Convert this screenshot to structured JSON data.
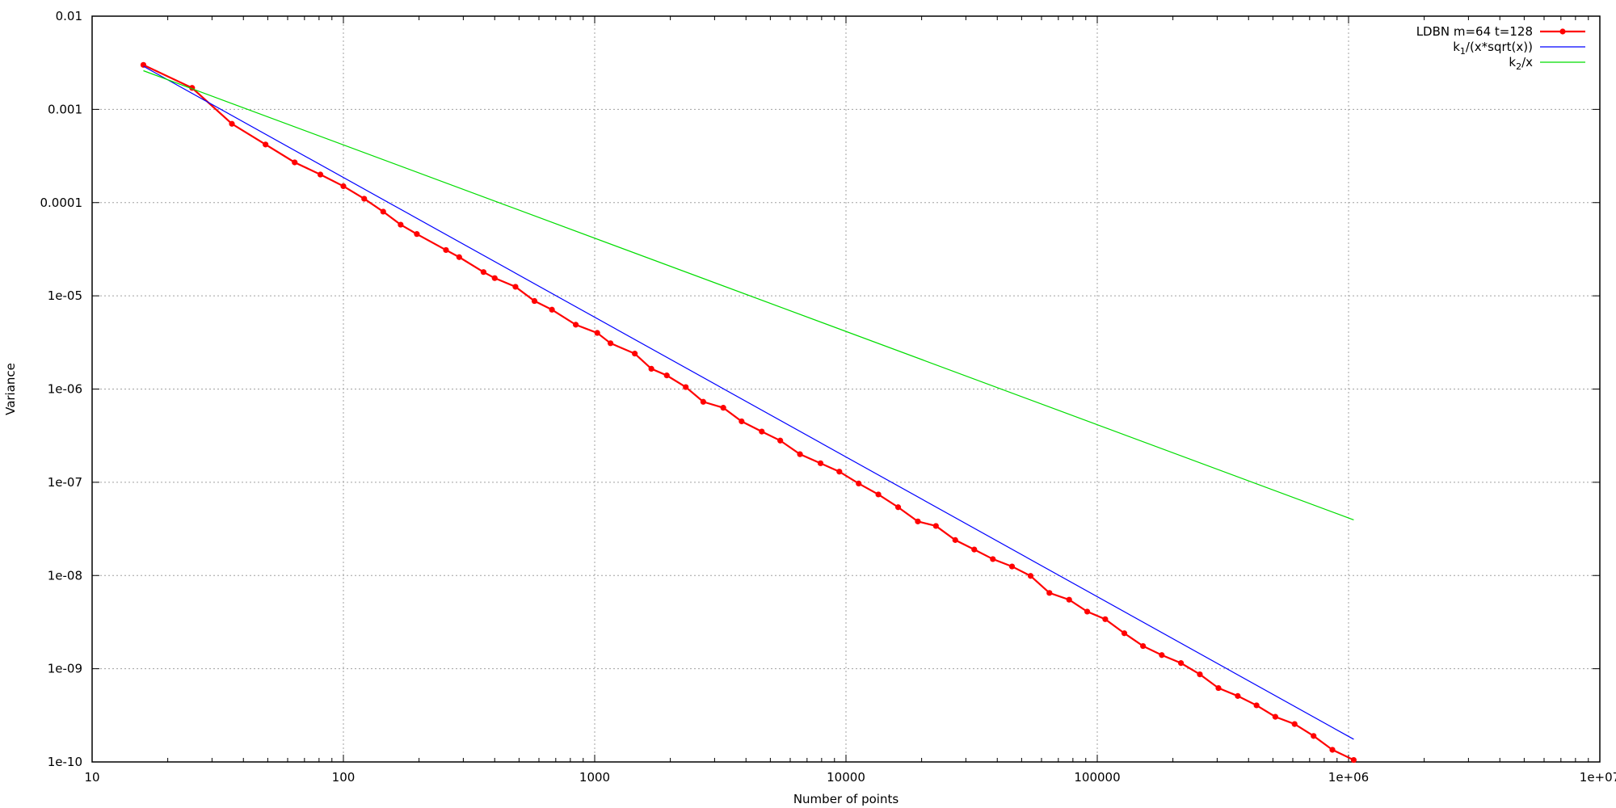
{
  "chart_data": {
    "type": "line",
    "xlabel": "Number of points",
    "ylabel": "Variance",
    "xscale": "log",
    "yscale": "log",
    "xlim": [
      10,
      10000000
    ],
    "ylim": [
      1e-10,
      0.01
    ],
    "grid": true,
    "legend_position": "top-right",
    "x_tick_labels": [
      "10",
      "100",
      "1000",
      "10000",
      "100000",
      "1e+06",
      "1e+07"
    ],
    "y_tick_labels": [
      "1e-10",
      "1e-09",
      "1e-08",
      "1e-07",
      "1e-06",
      "1e-05",
      "0.0001",
      "0.001",
      "0.01"
    ],
    "series": [
      {
        "name": "LDBN m=64 t=128",
        "color": "#ff0000",
        "marker": "point",
        "x": [
          16,
          25,
          36,
          49,
          64,
          81,
          100,
          121,
          144,
          169,
          196,
          256,
          289,
          361,
          400,
          484,
          576,
          676,
          841,
          1024,
          1156,
          1444,
          1681,
          1936,
          2304,
          2704,
          3249,
          3844,
          4624,
          5476,
          6561,
          7921,
          9409,
          11236,
          13456,
          16129,
          19321,
          22801,
          27225,
          32400,
          38416,
          45796,
          54289,
          64516,
          77284,
          91204,
          107584,
          128164,
          152100,
          180625,
          215296,
          256036,
          303601,
          362404,
          430336,
          511225,
          609961,
          725904,
          862488,
          1048576
        ],
        "y": [
          0.003,
          0.0017,
          0.0007,
          0.00042,
          0.00027,
          0.0002,
          0.00015,
          0.00011,
          8e-05,
          5.8e-05,
          4.6e-05,
          3.1e-05,
          2.6e-05,
          1.8e-05,
          1.55e-05,
          1.25e-05,
          8.8e-06,
          7.1e-06,
          4.9e-06,
          4e-06,
          3.1e-06,
          2.4e-06,
          1.65e-06,
          1.4e-06,
          1.05e-06,
          7.3e-07,
          6.3e-07,
          4.5e-07,
          3.5e-07,
          2.8e-07,
          2e-07,
          1.6e-07,
          1.3e-07,
          9.7e-08,
          7.4e-08,
          5.4e-08,
          3.8e-08,
          3.4e-08,
          2.4e-08,
          1.9e-08,
          1.5e-08,
          1.25e-08,
          9.9e-09,
          6.5e-09,
          5.5e-09,
          4.1e-09,
          3.4e-09,
          2.4e-09,
          1.75e-09,
          1.4e-09,
          1.15e-09,
          8.7e-10,
          6.2e-10,
          5.1e-10,
          4.05e-10,
          3.05e-10,
          2.55e-10,
          1.9e-10,
          1.35e-10,
          1.05e-10
        ]
      },
      {
        "name": "k₁/(x*sqrt(x))",
        "name_parts": [
          "k",
          "1",
          "/(x*sqrt(x))"
        ],
        "color": "#0000ff",
        "marker": "none",
        "x": [
          16,
          1048576
        ],
        "y": [
          0.0029,
          1.75e-10
        ]
      },
      {
        "name": "k₂/x",
        "name_parts": [
          "k",
          "2",
          "/x"
        ],
        "color": "#00dd00",
        "marker": "none",
        "x": [
          16,
          1048576
        ],
        "y": [
          0.0026,
          3.95e-08
        ]
      }
    ]
  }
}
